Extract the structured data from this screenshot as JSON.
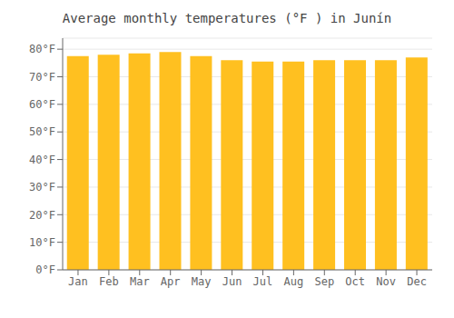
{
  "chart_data": {
    "type": "bar",
    "title": "Average monthly temperatures (°F ) in Junín",
    "categories": [
      "Jan",
      "Feb",
      "Mar",
      "Apr",
      "May",
      "Jun",
      "Jul",
      "Aug",
      "Sep",
      "Oct",
      "Nov",
      "Dec"
    ],
    "values": [
      77.5,
      78.0,
      78.5,
      79.0,
      77.5,
      76.0,
      75.5,
      75.5,
      76.0,
      76.0,
      76.0,
      77.0
    ],
    "color": "#FFC020",
    "ylim": [
      0,
      84
    ],
    "yticks": [
      {
        "value": 0,
        "label": "0°F"
      },
      {
        "value": 10,
        "label": "10°F"
      },
      {
        "value": 20,
        "label": "20°F"
      },
      {
        "value": 30,
        "label": "30°F"
      },
      {
        "value": 40,
        "label": "40°F"
      },
      {
        "value": 50,
        "label": "50°F"
      },
      {
        "value": 60,
        "label": "60°F"
      },
      {
        "value": 70,
        "label": "70°F"
      },
      {
        "value": 80,
        "label": "80°F"
      }
    ],
    "grid": true
  }
}
